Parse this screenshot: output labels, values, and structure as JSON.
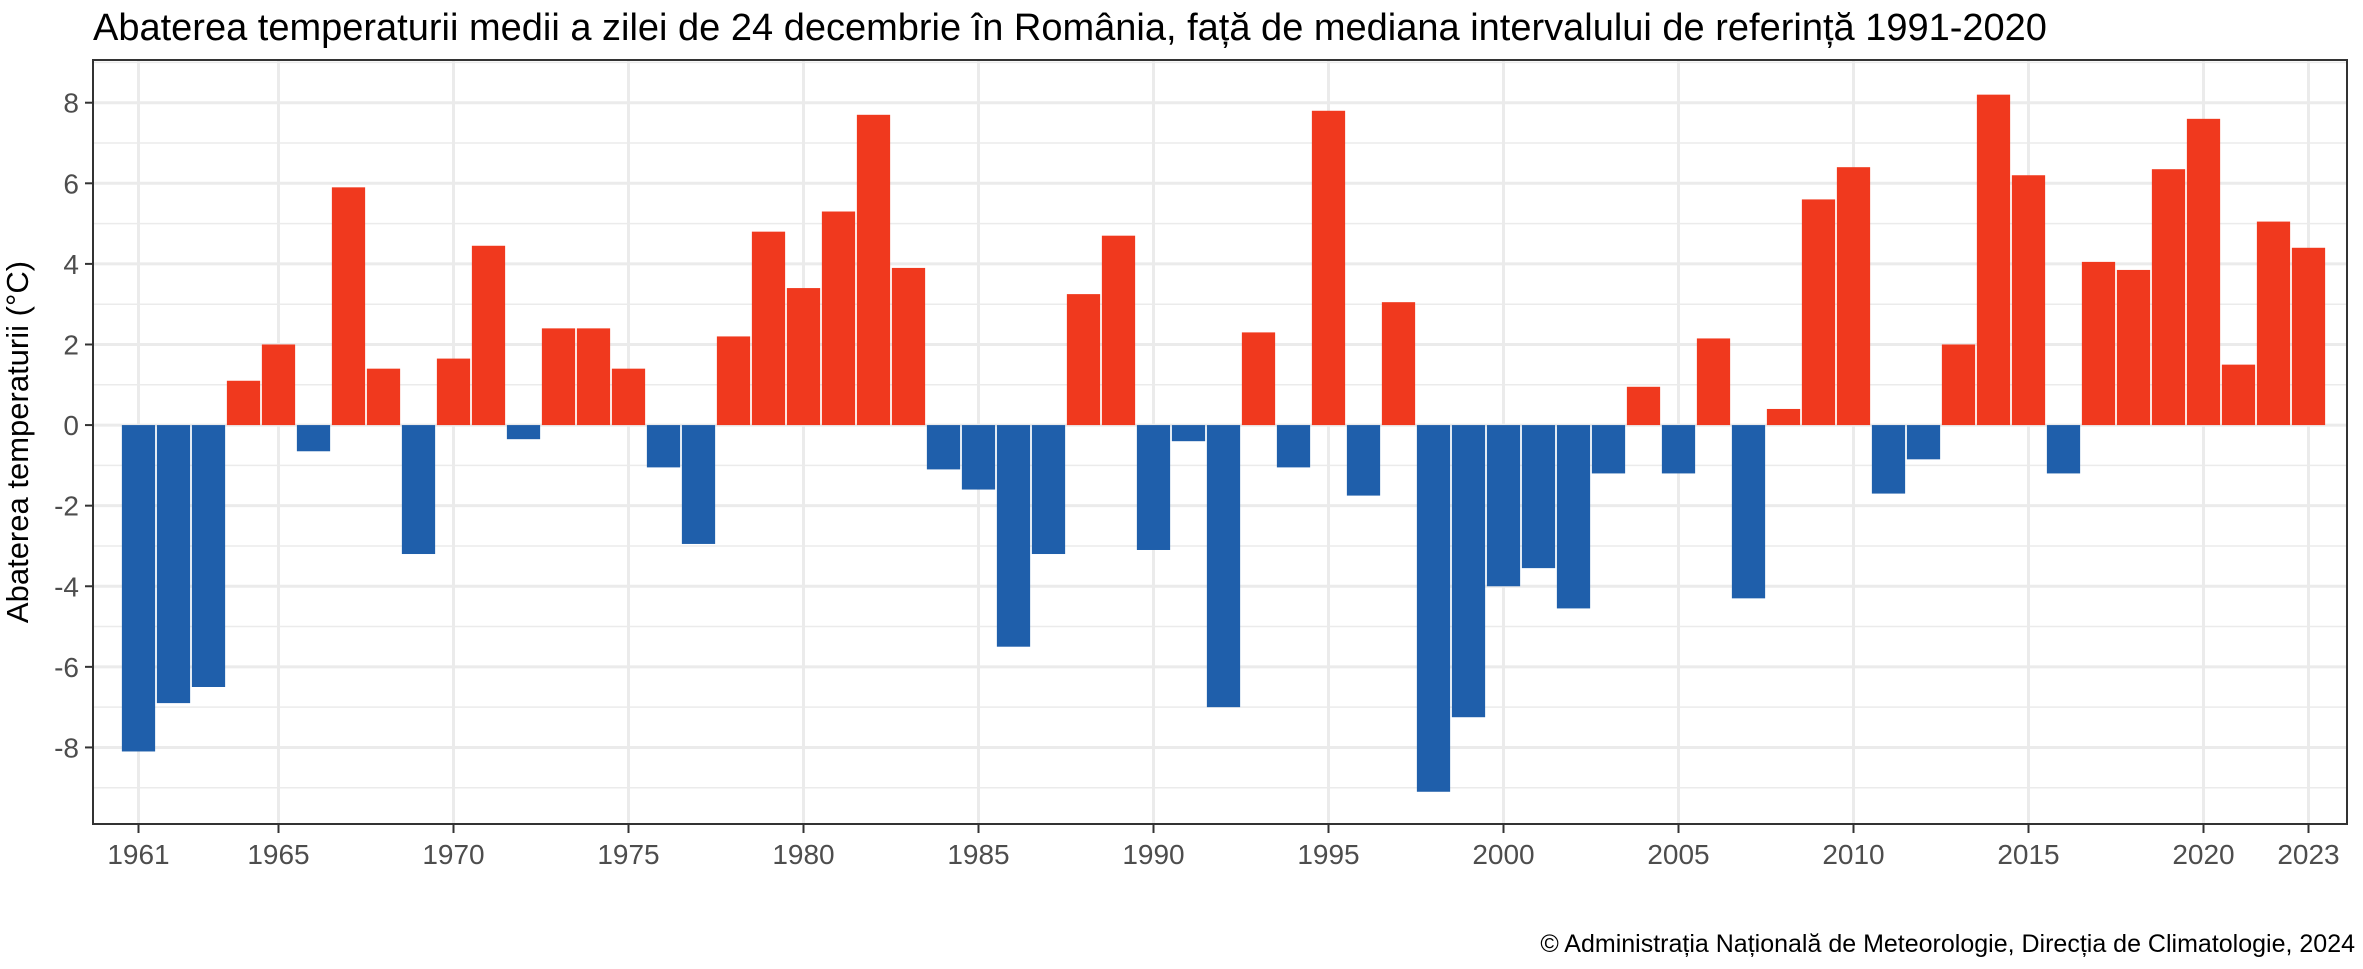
{
  "chart_data": {
    "type": "bar",
    "title": "Abaterea temperaturii medii a zilei de 24 decembrie în România, față de mediana intervalului de referință 1991-2020",
    "xlabel": "",
    "ylabel": "Abaterea temperaturii (°C)",
    "caption": "© Administrația Națională de Meteorologie, Direcția de Climatologie, 2024",
    "ylim": [
      -9.9,
      9.06
    ],
    "xlim": [
      1959.7,
      2024.1
    ],
    "yticks": [
      -8,
      -6,
      -4,
      -2,
      0,
      2,
      4,
      6,
      8
    ],
    "xticks": [
      1961,
      1965,
      1970,
      1975,
      1980,
      1985,
      1990,
      1995,
      2000,
      2005,
      2010,
      2015,
      2020,
      2023
    ],
    "grid": true,
    "colors": {
      "positive": "#f0391e",
      "negative": "#1f5fab"
    },
    "x": [
      1961,
      1962,
      1963,
      1964,
      1965,
      1966,
      1967,
      1968,
      1969,
      1970,
      1971,
      1972,
      1973,
      1974,
      1975,
      1976,
      1977,
      1978,
      1979,
      1980,
      1981,
      1982,
      1983,
      1984,
      1985,
      1986,
      1987,
      1988,
      1989,
      1990,
      1991,
      1992,
      1993,
      1994,
      1995,
      1996,
      1997,
      1998,
      1999,
      2000,
      2001,
      2002,
      2003,
      2004,
      2005,
      2006,
      2007,
      2008,
      2009,
      2010,
      2011,
      2012,
      2013,
      2014,
      2015,
      2016,
      2017,
      2018,
      2019,
      2020,
      2021,
      2022,
      2023
    ],
    "values": [
      -8.1,
      -6.9,
      -6.5,
      1.1,
      2.0,
      -0.65,
      5.9,
      1.4,
      -3.2,
      1.65,
      4.45,
      -0.35,
      2.4,
      2.4,
      1.4,
      -1.05,
      -2.95,
      2.2,
      4.8,
      3.4,
      5.3,
      7.7,
      3.9,
      -1.1,
      -1.6,
      -5.5,
      -3.2,
      3.25,
      4.7,
      -3.1,
      -0.4,
      -7.0,
      2.3,
      -1.05,
      7.8,
      -1.75,
      3.05,
      -9.1,
      -7.25,
      -4.0,
      -3.55,
      -4.55,
      -1.2,
      0.95,
      -1.2,
      2.15,
      -4.3,
      0.4,
      5.6,
      6.4,
      -1.7,
      -0.85,
      2.0,
      8.2,
      6.2,
      -1.2,
      4.05,
      3.85,
      6.35,
      7.6,
      1.5,
      5.05,
      4.4
    ]
  }
}
